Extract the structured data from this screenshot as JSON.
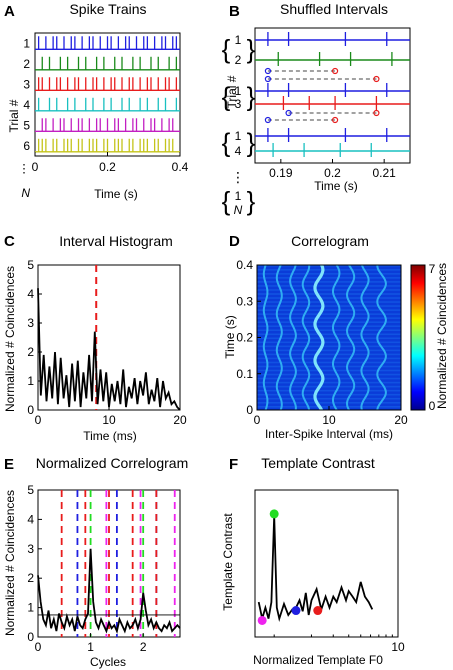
{
  "panels": {
    "A": {
      "label": "A",
      "title": "Spike Trains",
      "xlabel": "Time (s)",
      "ylabel": "Trial #"
    },
    "B": {
      "label": "B",
      "title": "Shuffled Intervals",
      "xlabel": "Time (s)",
      "ylabel": "Trial #"
    },
    "C": {
      "label": "C",
      "title": "Interval Histogram",
      "xlabel": "Time (ms)",
      "ylabel": "Normalized # Coincidences"
    },
    "D": {
      "label": "D",
      "title": "Correlogram",
      "xlabel": "Inter-Spike Interval (ms)",
      "ylabel": "Time (s)",
      "cbar_label": "Normalized # Coincidences"
    },
    "E": {
      "label": "E",
      "title": "Normalized Correlogram",
      "xlabel": "Cycles",
      "ylabel": "Normalized # Coincidences"
    },
    "F": {
      "label": "F",
      "title": "Template Contrast",
      "xlabel": "Normalized Template F0",
      "ylabel": "Template Contrast"
    }
  },
  "colors": {
    "blue": "#1f1fe0",
    "green": "#1a8a1a",
    "red": "#e81c1c",
    "cyan": "#19c0c0",
    "magenta": "#c21fc2",
    "yellow": "#c4c41a",
    "lightgreen": "#22dd22",
    "pink": "#ee22ee"
  },
  "chart_data": [
    {
      "id": "A",
      "type": "raster",
      "xlim": [
        0,
        0.4
      ],
      "xticks": [
        "0",
        "0.2",
        "0.4"
      ],
      "trial_labels": [
        "1",
        "2",
        "3",
        "4",
        "5",
        "6",
        "⋮",
        "N"
      ],
      "series": [
        {
          "name": "1",
          "color": "#1f1fe0",
          "spikes": [
            0.01,
            0.03,
            0.05,
            0.06,
            0.08,
            0.1,
            0.11,
            0.13,
            0.15,
            0.16,
            0.18,
            0.2,
            0.21,
            0.23,
            0.25,
            0.26,
            0.28,
            0.3,
            0.31,
            0.33,
            0.35,
            0.36,
            0.38,
            0.39
          ]
        },
        {
          "name": "2",
          "color": "#1a8a1a",
          "spikes": [
            0.02,
            0.04,
            0.07,
            0.09,
            0.12,
            0.14,
            0.17,
            0.19,
            0.22,
            0.24,
            0.27,
            0.29,
            0.32,
            0.34,
            0.37,
            0.39
          ]
        },
        {
          "name": "3",
          "color": "#e81c1c",
          "spikes": [
            0.01,
            0.02,
            0.04,
            0.06,
            0.07,
            0.09,
            0.11,
            0.12,
            0.14,
            0.16,
            0.17,
            0.19,
            0.21,
            0.22,
            0.24,
            0.26,
            0.27,
            0.29,
            0.31,
            0.32,
            0.34,
            0.36,
            0.37,
            0.39
          ]
        },
        {
          "name": "4",
          "color": "#19c0c0",
          "spikes": [
            0.01,
            0.04,
            0.06,
            0.09,
            0.11,
            0.14,
            0.16,
            0.19,
            0.21,
            0.24,
            0.26,
            0.29,
            0.31,
            0.34,
            0.36,
            0.39
          ]
        },
        {
          "name": "5",
          "color": "#c21fc2",
          "spikes": [
            0.02,
            0.03,
            0.05,
            0.07,
            0.08,
            0.1,
            0.12,
            0.13,
            0.15,
            0.17,
            0.18,
            0.2,
            0.22,
            0.23,
            0.25,
            0.27,
            0.28,
            0.3,
            0.32,
            0.33,
            0.35,
            0.37,
            0.38
          ]
        },
        {
          "name": "6",
          "color": "#c4c41a",
          "spikes": [
            0.01,
            0.02,
            0.03,
            0.05,
            0.06,
            0.08,
            0.09,
            0.1,
            0.12,
            0.13,
            0.15,
            0.16,
            0.17,
            0.19,
            0.2,
            0.22,
            0.23,
            0.24,
            0.26,
            0.27,
            0.29,
            0.3,
            0.31,
            0.33,
            0.34,
            0.36,
            0.37,
            0.38
          ]
        }
      ]
    },
    {
      "id": "B",
      "type": "raster",
      "xlim": [
        0.185,
        0.215
      ],
      "xticks": [
        "0.19",
        "0.2",
        "0.21"
      ],
      "xtick_values": [
        0.19,
        0.2,
        0.21
      ],
      "groups": [
        {
          "top": "1",
          "bottom": "2",
          "rows": [
            {
              "color": "#1f1fe0",
              "spikes": [
                0.1875,
                0.1915,
                0.2025,
                0.2105
              ]
            },
            {
              "color": "#1a8a1a",
              "spikes": [
                0.1895,
                0.1975,
                0.2035,
                0.2115
              ]
            }
          ]
        },
        {
          "top": "1",
          "bottom": "3",
          "rows": [
            {
              "color": "#1f1fe0",
              "spikes": [
                0.1875,
                0.1915,
                0.2025,
                0.2105
              ]
            },
            {
              "color": "#e81c1c",
              "spikes": [
                0.1905,
                0.1955,
                0.2005,
                0.2085
              ]
            }
          ]
        },
        {
          "top": "1",
          "bottom": "4",
          "rows": [
            {
              "color": "#1f1fe0",
              "spikes": [
                0.1875,
                0.1915,
                0.2025,
                0.2105
              ]
            },
            {
              "color": "#19c0c0",
              "spikes": [
                0.1885,
                0.1945,
                0.2015,
                0.2075
              ]
            }
          ]
        },
        {
          "top": "1",
          "bottom": "N",
          "rows": []
        }
      ],
      "markers": [
        {
          "from": 0.1875,
          "to": 0.2005,
          "color": "#1f1fe0"
        },
        {
          "from": 0.1875,
          "to": 0.2085,
          "color": "#e81c1c"
        },
        {
          "from": 0.1915,
          "to": 0.2085,
          "color": "#1f1fe0"
        },
        {
          "from": 0.1875,
          "to": 0.2005,
          "color": "#e81c1c"
        }
      ]
    },
    {
      "id": "C",
      "type": "line",
      "xlim": [
        0,
        20
      ],
      "ylim": [
        0,
        5
      ],
      "xticks": [
        "0",
        "10",
        "20"
      ],
      "yticks": [
        "0",
        "1",
        "2",
        "3",
        "4",
        "5"
      ],
      "vline": {
        "x": 8.2,
        "color": "#e81c1c",
        "dashed": true
      },
      "x": [
        0.0,
        0.4,
        0.8,
        1.2,
        1.6,
        2.0,
        2.4,
        2.8,
        3.2,
        3.6,
        4.0,
        4.4,
        4.8,
        5.2,
        5.6,
        6.0,
        6.4,
        6.8,
        7.2,
        7.6,
        8.0,
        8.4,
        8.8,
        9.2,
        9.6,
        10.0,
        10.4,
        10.8,
        11.2,
        11.6,
        12.0,
        12.4,
        12.8,
        13.2,
        13.6,
        14.0,
        14.4,
        14.8,
        15.2,
        15.6,
        16.0,
        16.4,
        16.8,
        17.2,
        17.6,
        18.0,
        18.4,
        18.8,
        19.2,
        19.6,
        20.0
      ],
      "values": [
        4.2,
        0.5,
        1.9,
        0.3,
        1.5,
        0.4,
        2.0,
        0.2,
        1.8,
        0.4,
        1.2,
        0.1,
        1.6,
        0.3,
        1.7,
        0.1,
        1.3,
        0.4,
        1.9,
        0.3,
        2.7,
        0.2,
        1.4,
        0.3,
        1.3,
        0.1,
        0.9,
        0.3,
        1.0,
        0.2,
        1.4,
        0.1,
        0.8,
        0.4,
        1.1,
        0.2,
        1.0,
        0.5,
        1.3,
        0.2,
        0.7,
        0.3,
        1.1,
        0.1,
        1.0,
        0.4,
        0.6,
        0.2,
        0.3,
        0.1,
        0.0
      ]
    },
    {
      "id": "D",
      "type": "heatmap",
      "xlim": [
        0,
        20
      ],
      "ylim": [
        0,
        0.4
      ],
      "xticks": [
        "0",
        "10",
        "20"
      ],
      "yticks": [
        "0",
        "0.1",
        "0.2",
        "0.3",
        "0.4"
      ],
      "colorbar": {
        "min": 0,
        "max": 7,
        "ticks": [
          "0",
          "7"
        ]
      },
      "ridges": [
        {
          "center": 1.2,
          "amp": 0.25,
          "intensity": 0.35
        },
        {
          "center": 3.1,
          "amp": 0.35,
          "intensity": 0.4
        },
        {
          "center": 5.0,
          "amp": 0.4,
          "intensity": 0.35
        },
        {
          "center": 6.8,
          "amp": 0.45,
          "intensity": 0.4
        },
        {
          "center": 8.6,
          "amp": 0.55,
          "intensity": 0.8
        },
        {
          "center": 11.0,
          "amp": 0.45,
          "intensity": 0.35
        },
        {
          "center": 13.0,
          "amp": 0.5,
          "intensity": 0.35
        },
        {
          "center": 15.0,
          "amp": 0.5,
          "intensity": 0.35
        },
        {
          "center": 17.3,
          "amp": 0.6,
          "intensity": 0.55
        }
      ]
    },
    {
      "id": "E",
      "type": "line",
      "xlim": [
        0,
        2.7
      ],
      "ylim": [
        0,
        5
      ],
      "xticks": [
        "0",
        "1",
        "2"
      ],
      "yticks": [
        "0",
        "1",
        "2",
        "3",
        "4",
        "5"
      ],
      "vlines": [
        {
          "x": 0.45,
          "color": "#e81c1c"
        },
        {
          "x": 0.75,
          "color": "#1f1fe0"
        },
        {
          "x": 0.9,
          "color": "#e81c1c"
        },
        {
          "x": 1.0,
          "color": "#22dd22"
        },
        {
          "x": 1.3,
          "color": "#ee22ee"
        },
        {
          "x": 1.35,
          "color": "#e81c1c"
        },
        {
          "x": 1.5,
          "color": "#1f1fe0"
        },
        {
          "x": 1.8,
          "color": "#e81c1c"
        },
        {
          "x": 1.95,
          "color": "#ee22ee"
        },
        {
          "x": 2.0,
          "color": "#22dd22"
        },
        {
          "x": 2.25,
          "color": "#1f1fe0"
        },
        {
          "x": 2.25,
          "color": "#e81c1c"
        },
        {
          "x": 2.6,
          "color": "#ee22ee"
        }
      ],
      "x": [
        0.0,
        0.05,
        0.1,
        0.15,
        0.2,
        0.25,
        0.3,
        0.35,
        0.4,
        0.45,
        0.5,
        0.55,
        0.6,
        0.65,
        0.7,
        0.75,
        0.8,
        0.85,
        0.9,
        0.95,
        1.0,
        1.05,
        1.1,
        1.15,
        1.2,
        1.25,
        1.3,
        1.35,
        1.4,
        1.45,
        1.5,
        1.55,
        1.6,
        1.65,
        1.7,
        1.75,
        1.8,
        1.85,
        1.9,
        1.95,
        2.0,
        2.05,
        2.1,
        2.15,
        2.2,
        2.25,
        2.3,
        2.35,
        2.4,
        2.45,
        2.5,
        2.55,
        2.6,
        2.65,
        2.7
      ],
      "values": [
        2.1,
        1.2,
        0.6,
        0.4,
        0.9,
        0.3,
        0.6,
        0.2,
        0.8,
        0.5,
        0.3,
        0.7,
        0.4,
        0.6,
        0.2,
        0.7,
        0.4,
        0.3,
        0.6,
        0.8,
        3.0,
        1.2,
        0.5,
        0.3,
        0.6,
        0.4,
        0.2,
        0.5,
        0.3,
        0.4,
        0.2,
        0.6,
        0.4,
        0.2,
        0.5,
        0.3,
        0.4,
        0.6,
        0.3,
        0.6,
        1.5,
        0.9,
        0.4,
        0.6,
        0.3,
        0.5,
        0.3,
        0.2,
        0.4,
        0.3,
        0.5,
        0.2,
        0.3,
        0.4,
        0.3
      ],
      "baseline": 0.75
    },
    {
      "id": "F",
      "type": "line",
      "xscale": "log",
      "xlim": [
        0.7,
        10
      ],
      "ylim": [
        0,
        4
      ],
      "xticks": [
        "10"
      ],
      "xtick_values": [
        10
      ],
      "x": [
        0.75,
        0.8,
        0.85,
        0.9,
        0.95,
        1.0,
        1.05,
        1.1,
        1.2,
        1.3,
        1.4,
        1.5,
        1.6,
        1.7,
        1.8,
        1.9,
        2.0,
        2.2,
        2.4,
        2.6,
        2.8,
        3.0,
        3.2,
        3.5,
        3.8,
        4.0,
        4.3,
        4.6,
        5.0,
        5.4,
        5.8,
        6.2
      ],
      "values": [
        0.95,
        0.5,
        0.8,
        0.5,
        0.95,
        3.3,
        0.8,
        0.5,
        0.9,
        0.6,
        0.75,
        0.8,
        1.0,
        0.7,
        1.2,
        0.6,
        1.0,
        1.3,
        0.75,
        1.1,
        0.8,
        1.1,
        0.95,
        1.35,
        1.0,
        1.25,
        1.1,
        0.95,
        1.5,
        1.1,
        0.95,
        0.75
      ],
      "points": [
        {
          "x": 0.8,
          "y": 0.45,
          "color": "#ee22ee"
        },
        {
          "x": 1.0,
          "y": 3.35,
          "color": "#22dd22"
        },
        {
          "x": 1.5,
          "y": 0.72,
          "color": "#1f1fe0"
        },
        {
          "x": 2.25,
          "y": 0.72,
          "color": "#e81c1c"
        }
      ]
    }
  ]
}
